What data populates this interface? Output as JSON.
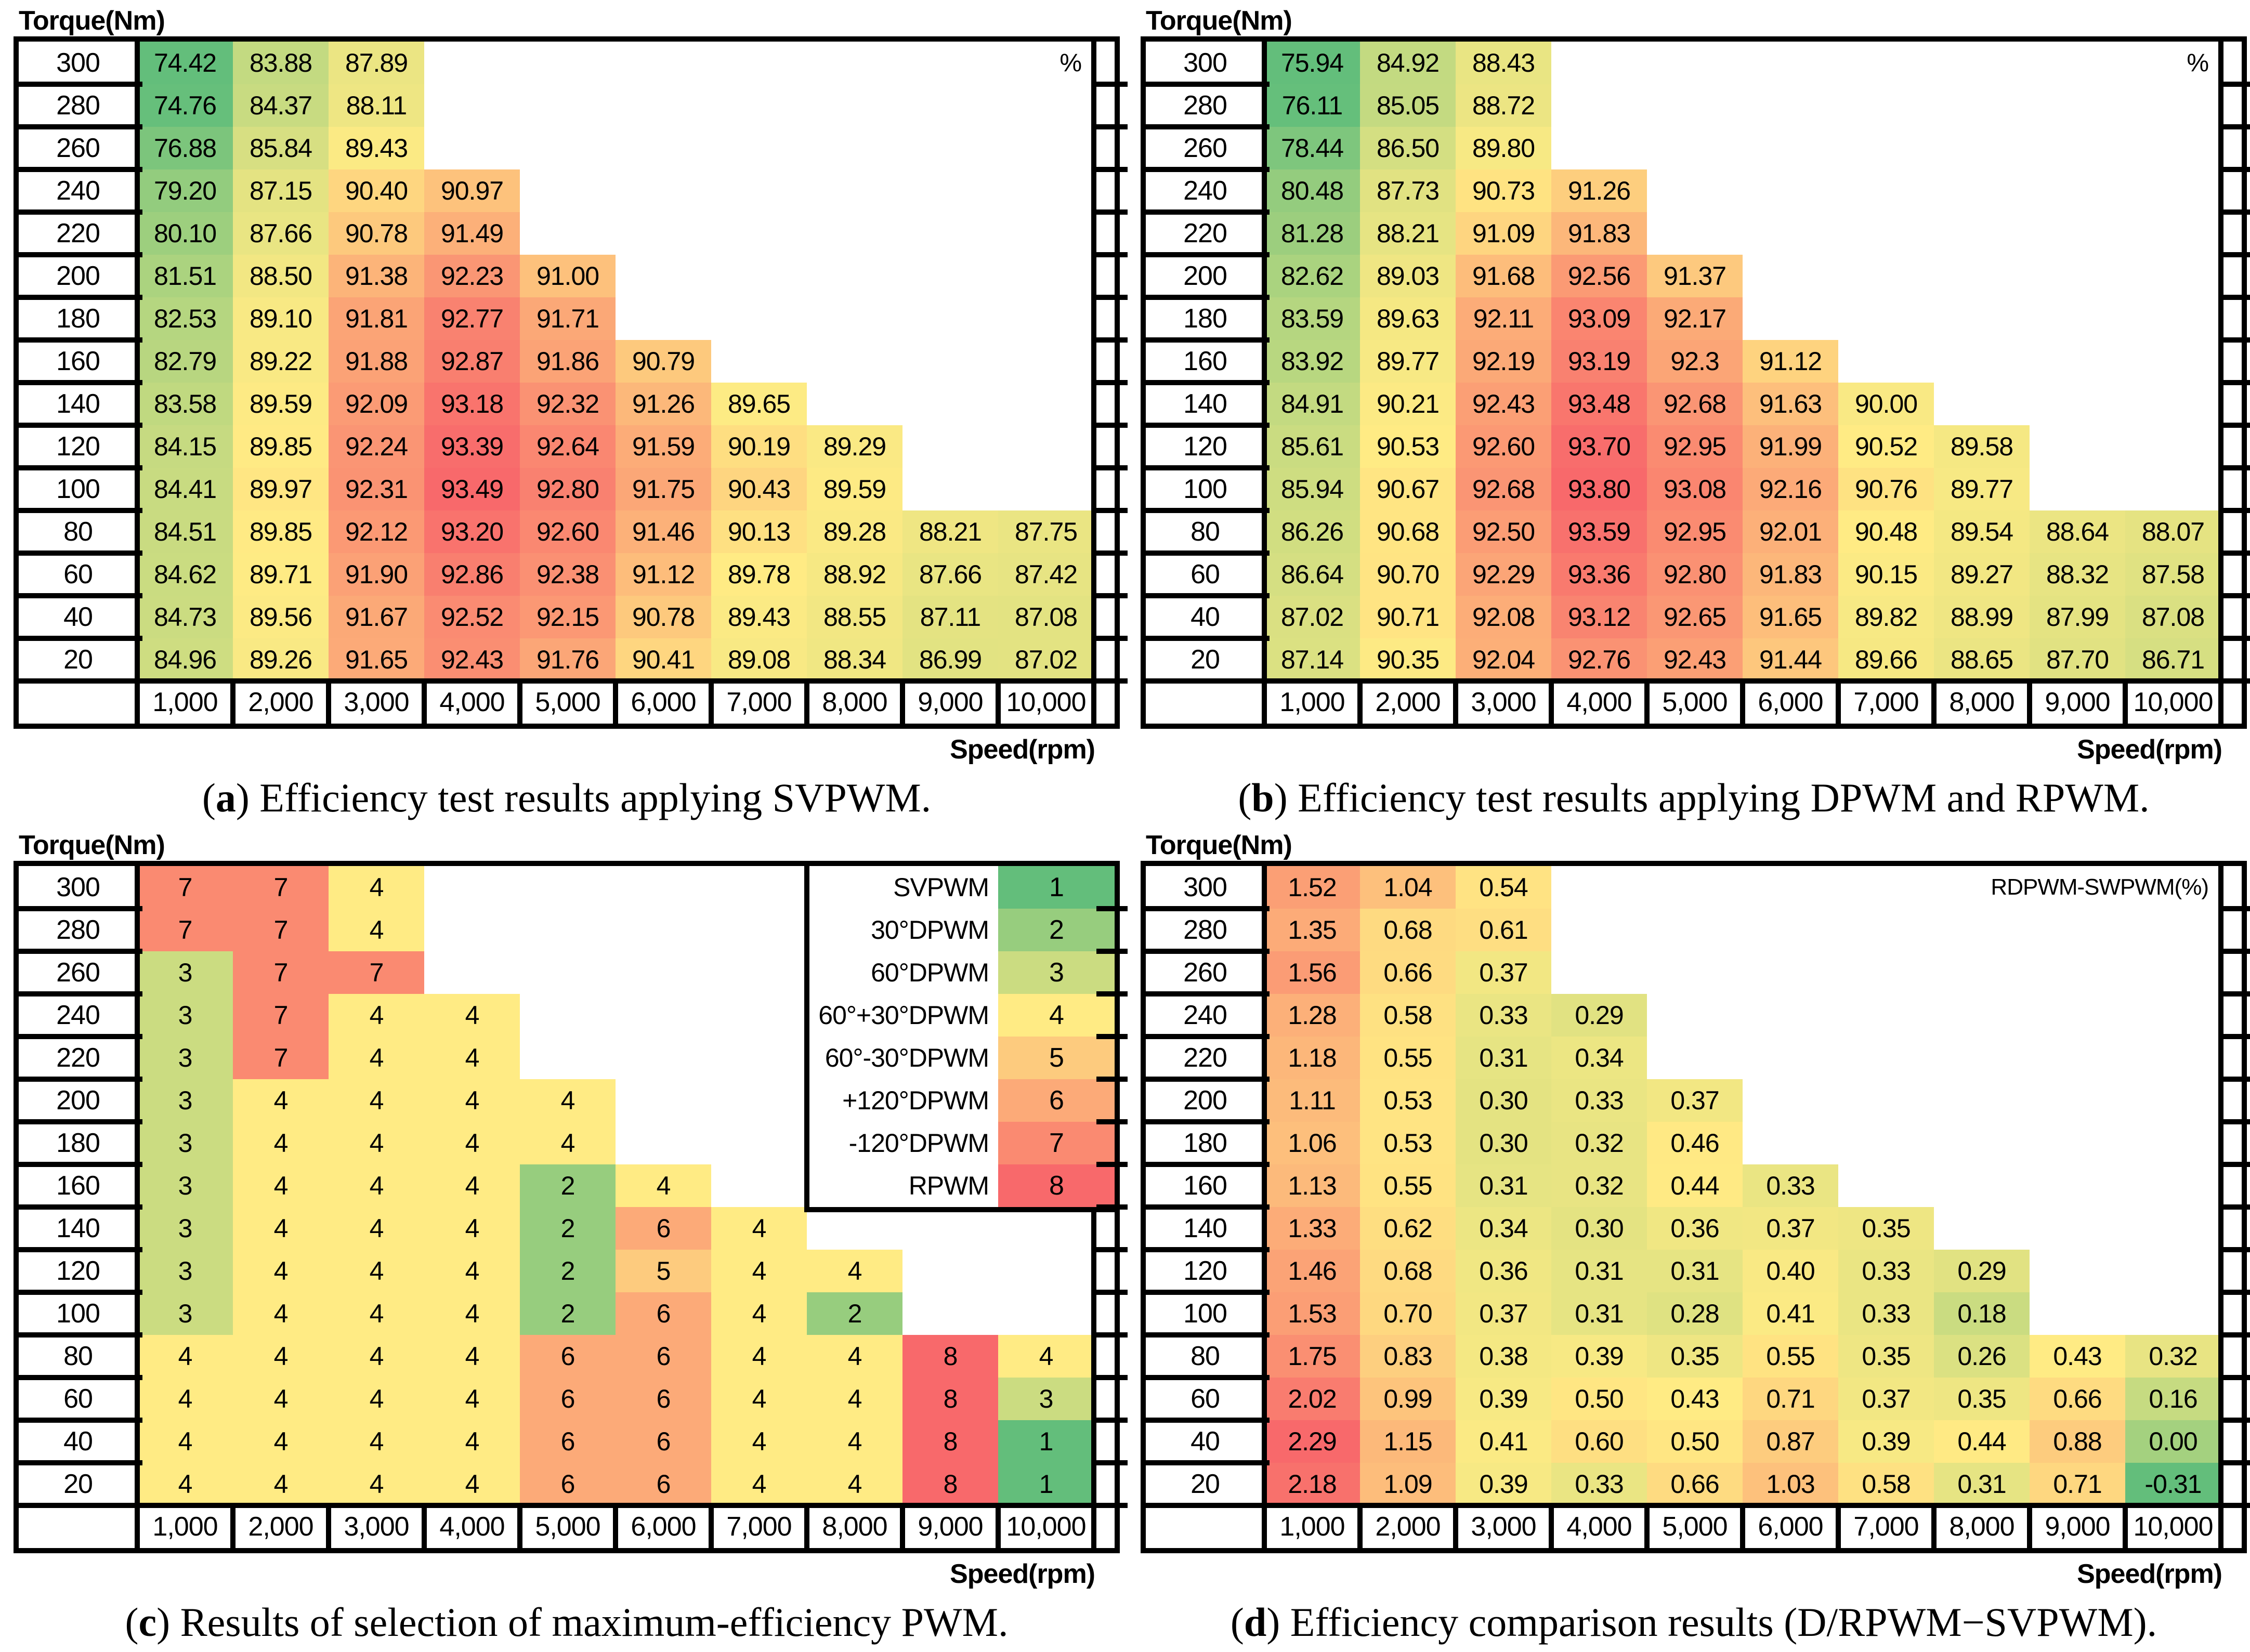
{
  "colors": {
    "scale_min": "#63BE7B",
    "scale_mid": "#FFEB84",
    "scale_max": "#F8696B",
    "border": "#000000",
    "background": "#FFFFFF"
  },
  "chart_data": [
    {
      "type": "heatmap",
      "title": "(a) Efficiency test results applying SVPWM.",
      "caption": {
        "open": "(",
        "letter": "a",
        "close": ") ",
        "text": "Efficiency test results applying SVPWM."
      },
      "xlabel": "Speed(rpm)",
      "ylabel": "Torque(Nm)",
      "unit_label": "%",
      "x": [
        "1,000",
        "2,000",
        "3,000",
        "4,000",
        "5,000",
        "6,000",
        "7,000",
        "8,000",
        "9,000",
        "10,000"
      ],
      "y": [
        "300",
        "280",
        "260",
        "240",
        "220",
        "200",
        "180",
        "160",
        "140",
        "120",
        "100",
        "80",
        "60",
        "40",
        "20"
      ],
      "color_scale": {
        "min_color": "#63BE7B",
        "mid_color": "#FFEB84",
        "max_color": "#F8696B",
        "midpoint": "median"
      },
      "values": [
        [
          "74.42",
          "83.88",
          "87.89"
        ],
        [
          "74.76",
          "84.37",
          "88.11"
        ],
        [
          "76.88",
          "85.84",
          "89.43"
        ],
        [
          "79.20",
          "87.15",
          "90.40",
          "90.97"
        ],
        [
          "80.10",
          "87.66",
          "90.78",
          "91.49"
        ],
        [
          "81.51",
          "88.50",
          "91.38",
          "92.23",
          "91.00"
        ],
        [
          "82.53",
          "89.10",
          "91.81",
          "92.77",
          "91.71"
        ],
        [
          "82.79",
          "89.22",
          "91.88",
          "92.87",
          "91.86",
          "90.79"
        ],
        [
          "83.58",
          "89.59",
          "92.09",
          "93.18",
          "92.32",
          "91.26",
          "89.65"
        ],
        [
          "84.15",
          "89.85",
          "92.24",
          "93.39",
          "92.64",
          "91.59",
          "90.19",
          "89.29"
        ],
        [
          "84.41",
          "89.97",
          "92.31",
          "93.49",
          "92.80",
          "91.75",
          "90.43",
          "89.59"
        ],
        [
          "84.51",
          "89.85",
          "92.12",
          "93.20",
          "92.60",
          "91.46",
          "90.13",
          "89.28",
          "88.21",
          "87.75"
        ],
        [
          "84.62",
          "89.71",
          "91.90",
          "92.86",
          "92.38",
          "91.12",
          "89.78",
          "88.92",
          "87.66",
          "87.42"
        ],
        [
          "84.73",
          "89.56",
          "91.67",
          "92.52",
          "92.15",
          "90.78",
          "89.43",
          "88.55",
          "87.11",
          "87.08"
        ],
        [
          "84.96",
          "89.26",
          "91.65",
          "92.43",
          "91.76",
          "90.41",
          "89.08",
          "88.34",
          "86.99",
          "87.02"
        ]
      ]
    },
    {
      "type": "heatmap",
      "title": "(b) Efficiency test results applying DPWM and RPWM.",
      "caption": {
        "open": "(",
        "letter": "b",
        "close": ") ",
        "text": "Efficiency test results applying DPWM and RPWM."
      },
      "xlabel": "Speed(rpm)",
      "ylabel": "Torque(Nm)",
      "unit_label": "%",
      "x": [
        "1,000",
        "2,000",
        "3,000",
        "4,000",
        "5,000",
        "6,000",
        "7,000",
        "8,000",
        "9,000",
        "10,000"
      ],
      "y": [
        "300",
        "280",
        "260",
        "240",
        "220",
        "200",
        "180",
        "160",
        "140",
        "120",
        "100",
        "80",
        "60",
        "40",
        "20"
      ],
      "color_scale": {
        "min_color": "#63BE7B",
        "mid_color": "#FFEB84",
        "max_color": "#F8696B",
        "midpoint": "median"
      },
      "values": [
        [
          "75.94",
          "84.92",
          "88.43"
        ],
        [
          "76.11",
          "85.05",
          "88.72"
        ],
        [
          "78.44",
          "86.50",
          "89.80"
        ],
        [
          "80.48",
          "87.73",
          "90.73",
          "91.26"
        ],
        [
          "81.28",
          "88.21",
          "91.09",
          "91.83"
        ],
        [
          "82.62",
          "89.03",
          "91.68",
          "92.56",
          "91.37"
        ],
        [
          "83.59",
          "89.63",
          "92.11",
          "93.09",
          "92.17"
        ],
        [
          "83.92",
          "89.77",
          "92.19",
          "93.19",
          "92.3",
          "91.12"
        ],
        [
          "84.91",
          "90.21",
          "92.43",
          "93.48",
          "92.68",
          "91.63",
          "90.00"
        ],
        [
          "85.61",
          "90.53",
          "92.60",
          "93.70",
          "92.95",
          "91.99",
          "90.52",
          "89.58"
        ],
        [
          "85.94",
          "90.67",
          "92.68",
          "93.80",
          "93.08",
          "92.16",
          "90.76",
          "89.77"
        ],
        [
          "86.26",
          "90.68",
          "92.50",
          "93.59",
          "92.95",
          "92.01",
          "90.48",
          "89.54",
          "88.64",
          "88.07"
        ],
        [
          "86.64",
          "90.70",
          "92.29",
          "93.36",
          "92.80",
          "91.83",
          "90.15",
          "89.27",
          "88.32",
          "87.58"
        ],
        [
          "87.02",
          "90.71",
          "92.08",
          "93.12",
          "92.65",
          "91.65",
          "89.82",
          "88.99",
          "87.99",
          "87.08"
        ],
        [
          "87.14",
          "90.35",
          "92.04",
          "92.76",
          "92.43",
          "91.44",
          "89.66",
          "88.65",
          "87.70",
          "86.71"
        ]
      ]
    },
    {
      "type": "heatmap",
      "title": "(c) Results of selection of maximum-efficiency PWM.",
      "caption": {
        "open": "(",
        "letter": "c",
        "close": ") ",
        "text": "Results of selection of maximum-efficiency PWM."
      },
      "xlabel": "Speed(rpm)",
      "ylabel": "Torque(Nm)",
      "unit_label": "",
      "x": [
        "1,000",
        "2,000",
        "3,000",
        "4,000",
        "5,000",
        "6,000",
        "7,000",
        "8,000",
        "9,000",
        "10,000"
      ],
      "y": [
        "300",
        "280",
        "260",
        "240",
        "220",
        "200",
        "180",
        "160",
        "140",
        "120",
        "100",
        "80",
        "60",
        "40",
        "20"
      ],
      "color_scale": {
        "min_color": "#63BE7B",
        "mid_color": "#FFEB84",
        "max_color": "#F8696B",
        "midpoint": "median"
      },
      "legend": {
        "items": [
          {
            "label": "SVPWM",
            "value": "1"
          },
          {
            "label": "30°DPWM",
            "value": "2"
          },
          {
            "label": "60°DPWM",
            "value": "3"
          },
          {
            "label": "60°+30°DPWM",
            "value": "4"
          },
          {
            "label": "60°-30°DPWM",
            "value": "5"
          },
          {
            "label": "+120°DPWM",
            "value": "6"
          },
          {
            "label": "-120°DPWM",
            "value": "7"
          },
          {
            "label": "RPWM",
            "value": "8"
          }
        ]
      },
      "values": [
        [
          "7",
          "7",
          "4"
        ],
        [
          "7",
          "7",
          "4"
        ],
        [
          "3",
          "7",
          "7"
        ],
        [
          "3",
          "7",
          "4",
          "4"
        ],
        [
          "3",
          "7",
          "4",
          "4"
        ],
        [
          "3",
          "4",
          "4",
          "4",
          "4"
        ],
        [
          "3",
          "4",
          "4",
          "4",
          "4"
        ],
        [
          "3",
          "4",
          "4",
          "4",
          "2",
          "4"
        ],
        [
          "3",
          "4",
          "4",
          "4",
          "2",
          "6",
          "4"
        ],
        [
          "3",
          "4",
          "4",
          "4",
          "2",
          "5",
          "4",
          "4"
        ],
        [
          "3",
          "4",
          "4",
          "4",
          "2",
          "6",
          "4",
          "2"
        ],
        [
          "4",
          "4",
          "4",
          "4",
          "6",
          "6",
          "4",
          "4",
          "8",
          "4"
        ],
        [
          "4",
          "4",
          "4",
          "4",
          "6",
          "6",
          "4",
          "4",
          "8",
          "3"
        ],
        [
          "4",
          "4",
          "4",
          "4",
          "6",
          "6",
          "4",
          "4",
          "8",
          "1"
        ],
        [
          "4",
          "4",
          "4",
          "4",
          "6",
          "6",
          "4",
          "4",
          "8",
          "1"
        ]
      ]
    },
    {
      "type": "heatmap",
      "title": "(d) Efficiency comparison results (D/RPWM−SVPWM).",
      "caption": {
        "open": "(",
        "letter": "d",
        "close": ") ",
        "text": "Efficiency comparison results (D/RPWM−SVPWM)."
      },
      "xlabel": "Speed(rpm)",
      "ylabel": "Torque(Nm)",
      "unit_label": "RDPWM-SWPWM(%)",
      "x": [
        "1,000",
        "2,000",
        "3,000",
        "4,000",
        "5,000",
        "6,000",
        "7,000",
        "8,000",
        "9,000",
        "10,000"
      ],
      "y": [
        "300",
        "280",
        "260",
        "240",
        "220",
        "200",
        "180",
        "160",
        "140",
        "120",
        "100",
        "80",
        "60",
        "40",
        "20"
      ],
      "color_scale": {
        "min_color": "#63BE7B",
        "mid_color": "#FFEB84",
        "max_color": "#F8696B",
        "midpoint": "median"
      },
      "values": [
        [
          "1.52",
          "1.04",
          "0.54"
        ],
        [
          "1.35",
          "0.68",
          "0.61"
        ],
        [
          "1.56",
          "0.66",
          "0.37"
        ],
        [
          "1.28",
          "0.58",
          "0.33",
          "0.29"
        ],
        [
          "1.18",
          "0.55",
          "0.31",
          "0.34"
        ],
        [
          "1.11",
          "0.53",
          "0.30",
          "0.33",
          "0.37"
        ],
        [
          "1.06",
          "0.53",
          "0.30",
          "0.32",
          "0.46"
        ],
        [
          "1.13",
          "0.55",
          "0.31",
          "0.32",
          "0.44",
          "0.33"
        ],
        [
          "1.33",
          "0.62",
          "0.34",
          "0.30",
          "0.36",
          "0.37",
          "0.35"
        ],
        [
          "1.46",
          "0.68",
          "0.36",
          "0.31",
          "0.31",
          "0.40",
          "0.33",
          "0.29"
        ],
        [
          "1.53",
          "0.70",
          "0.37",
          "0.31",
          "0.28",
          "0.41",
          "0.33",
          "0.18"
        ],
        [
          "1.75",
          "0.83",
          "0.38",
          "0.39",
          "0.35",
          "0.55",
          "0.35",
          "0.26",
          "0.43",
          "0.32"
        ],
        [
          "2.02",
          "0.99",
          "0.39",
          "0.50",
          "0.43",
          "0.71",
          "0.37",
          "0.35",
          "0.66",
          "0.16"
        ],
        [
          "2.29",
          "1.15",
          "0.41",
          "0.60",
          "0.50",
          "0.87",
          "0.39",
          "0.44",
          "0.88",
          "0.00"
        ],
        [
          "2.18",
          "1.09",
          "0.39",
          "0.33",
          "0.66",
          "1.03",
          "0.58",
          "0.31",
          "0.71",
          "-0.31"
        ]
      ]
    }
  ]
}
